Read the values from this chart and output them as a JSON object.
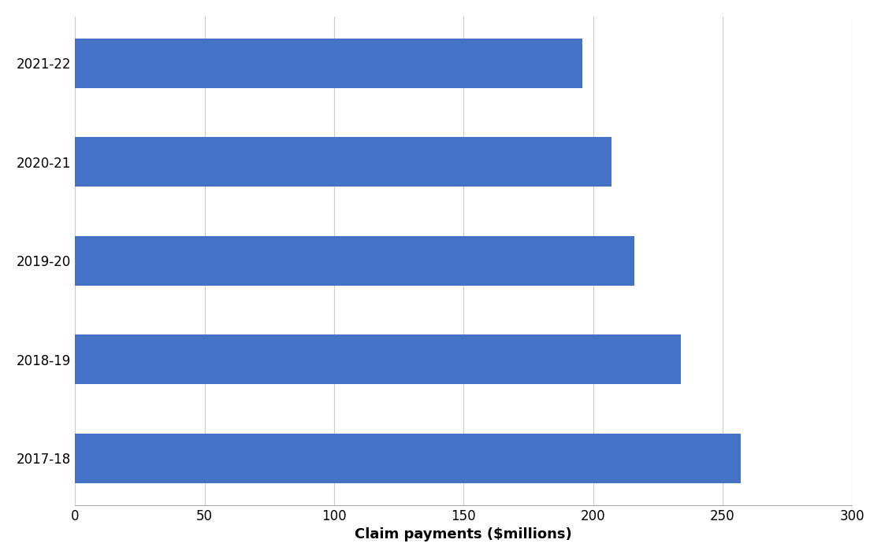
{
  "categories": [
    "2017-18",
    "2018-19",
    "2019-20",
    "2020-21",
    "2021-22"
  ],
  "values": [
    257,
    234,
    216,
    207,
    196
  ],
  "bar_color": "#4472C4",
  "xlabel": "Claim payments ($millions)",
  "xlim": [
    0,
    300
  ],
  "xticks": [
    0,
    50,
    100,
    150,
    200,
    250,
    300
  ],
  "background_color": "#ffffff",
  "xlabel_fontsize": 13,
  "tick_fontsize": 12,
  "ytick_fontsize": 12,
  "bar_height": 0.5,
  "grid_color": "#cccccc",
  "grid_linewidth": 0.8
}
